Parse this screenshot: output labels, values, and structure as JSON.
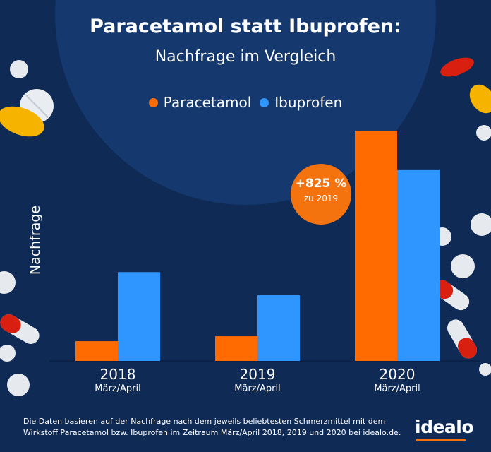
{
  "colors": {
    "paracetamol": "#ff6b00",
    "ibuprofen": "#2f96ff",
    "background": "#0e2a55"
  },
  "chart_data": {
    "type": "bar",
    "title": "Paracetamol statt Ibuprofen:",
    "subtitle": "Nachfrage im Vergleich",
    "ylabel": "Nachfrage",
    "xlabel": "",
    "categories": [
      "2018",
      "2019",
      "2020"
    ],
    "category_sublabels": [
      "März/April",
      "März/April",
      "März/April"
    ],
    "series": [
      {
        "name": "Paracetamol",
        "values": [
          0.6,
          0.75,
          7.0
        ]
      },
      {
        "name": "Ibuprofen",
        "values": [
          2.7,
          2.0,
          5.8
        ]
      }
    ],
    "ylim": [
      0,
      7.3
    ],
    "grid": false,
    "legend": "top-center",
    "annotation": {
      "value": "+825 %",
      "sub": "zu 2019"
    }
  },
  "footnote": "Die Daten basieren auf der Nachfrage nach dem jeweils beliebtesten Schmerzmittel mit dem Wirkstoff Paracetamol bzw. Ibuprofen im Zeitraum März/April 2018, 2019 und 2020 bei idealo.de.",
  "logo": "idealo"
}
